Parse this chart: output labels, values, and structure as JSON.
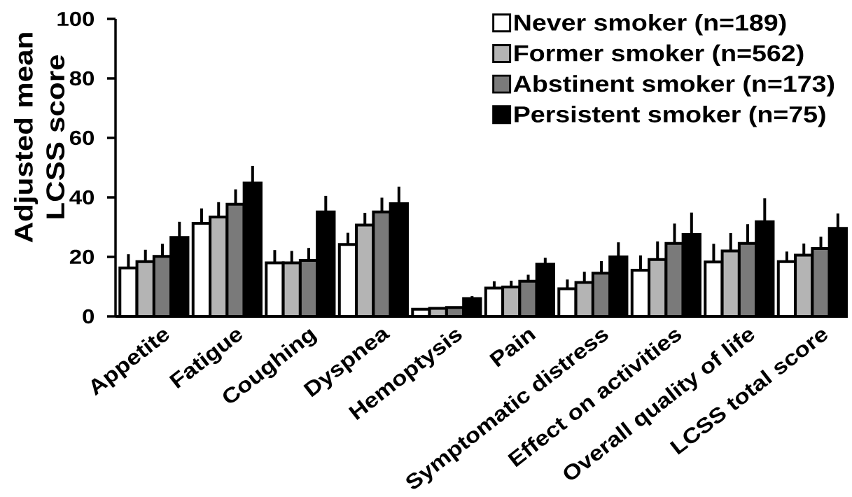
{
  "chart_data": {
    "type": "bar",
    "ylabel": "Adjusted mean LCSS score",
    "categories": [
      "Appetite",
      "Fatigue",
      "Coughing",
      "Dyspnea",
      "Hemoptysis",
      "Pain",
      "Symptomatic distress",
      "Effect on activities",
      "Overall quality of life",
      "LCSS total score"
    ],
    "ylim": [
      0,
      100
    ],
    "yticks": [
      0,
      20,
      40,
      60,
      80,
      100
    ],
    "legend": "top right",
    "series": [
      {
        "name": "Never smoker (n=189)",
        "color": "#ffffff",
        "values": [
          16.3,
          31.3,
          18.0,
          24.2,
          2.4,
          9.5,
          9.3,
          15.5,
          18.3,
          18.4
        ],
        "errors": [
          [
            16.3,
            20.9
          ],
          [
            31.3,
            36.3
          ],
          [
            18.0,
            22.3
          ],
          [
            24.2,
            28.1
          ],
          null,
          [
            9.5,
            11.8
          ],
          [
            9.3,
            12.4
          ],
          [
            15.5,
            20.5
          ],
          [
            18.3,
            24.4
          ],
          [
            18.4,
            21.8
          ]
        ]
      },
      {
        "name": "Former smoker (n=562)",
        "color": "#b4b4b4",
        "values": [
          18.4,
          33.4,
          18.0,
          30.7,
          2.7,
          9.9,
          11.4,
          19.1,
          22.0,
          20.6
        ],
        "errors": [
          [
            18.4,
            22.4
          ],
          [
            33.4,
            38.4
          ],
          [
            18.0,
            22.0
          ],
          [
            30.7,
            34.8
          ],
          null,
          [
            9.9,
            12.0
          ],
          [
            11.4,
            15.0
          ],
          [
            19.1,
            25.2
          ],
          [
            22.0,
            28.0
          ],
          [
            20.6,
            24.5
          ]
        ]
      },
      {
        "name": "Abstinent smoker (n=173)",
        "color": "#7a7a7a",
        "values": [
          20.2,
          37.7,
          18.8,
          35.1,
          3.0,
          11.8,
          14.5,
          24.5,
          24.5,
          22.8
        ],
        "errors": [
          [
            20.2,
            24.4
          ],
          [
            37.7,
            42.7
          ],
          [
            18.8,
            23.0
          ],
          [
            35.1,
            39.9
          ],
          null,
          [
            11.8,
            14.0
          ],
          [
            14.5,
            18.6
          ],
          [
            24.5,
            31.2
          ],
          [
            24.5,
            31.0
          ],
          [
            22.8,
            26.8
          ]
        ]
      },
      {
        "name": "Persistent smoker (n=75)",
        "color": "#000000",
        "values": [
          26.5,
          44.8,
          35.1,
          37.9,
          6.0,
          17.5,
          20.0,
          27.5,
          31.8,
          29.6
        ],
        "errors": [
          [
            26.5,
            31.8
          ],
          [
            44.8,
            50.6
          ],
          [
            35.1,
            40.5
          ],
          [
            37.9,
            43.6
          ],
          [
            6.0,
            6.8
          ],
          [
            17.5,
            19.7
          ],
          [
            20.0,
            24.9
          ],
          [
            27.5,
            34.9
          ],
          [
            31.8,
            39.7
          ],
          [
            29.6,
            34.6
          ]
        ]
      }
    ]
  }
}
